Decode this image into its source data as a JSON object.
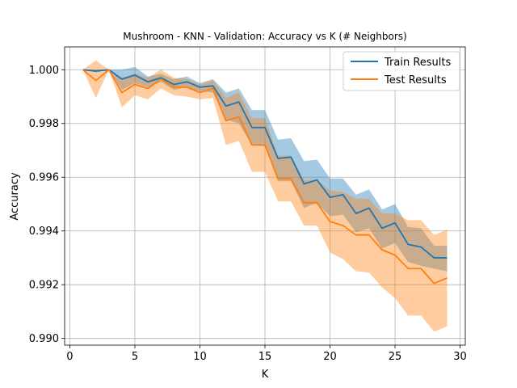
{
  "chart_data": {
    "type": "line",
    "title": "Mushroom - KNN - Validation: Accuracy vs K (# Neighbors)",
    "xlabel": "K",
    "ylabel": "Accuracy",
    "xlim": [
      -0.4,
      30.4
    ],
    "ylim": [
      0.98975,
      1.00085
    ],
    "xticks": [
      0,
      5,
      10,
      15,
      20,
      25,
      30
    ],
    "xtick_labels": [
      "0",
      "5",
      "10",
      "15",
      "20",
      "25",
      "30"
    ],
    "yticks": [
      0.99,
      0.992,
      0.994,
      0.996,
      0.998,
      1.0
    ],
    "ytick_labels": [
      "0.990",
      "0.992",
      "0.994",
      "0.996",
      "0.998",
      "1.000"
    ],
    "grid": true,
    "legend_position": "upper right",
    "x": [
      1,
      2,
      3,
      4,
      5,
      6,
      7,
      8,
      9,
      10,
      11,
      12,
      13,
      14,
      15,
      16,
      17,
      18,
      19,
      20,
      21,
      22,
      23,
      24,
      25,
      26,
      27,
      28,
      29
    ],
    "series": [
      {
        "name": "Train Results",
        "color": "#1f77b4",
        "band_color": "#1f77b4",
        "values": [
          1.0,
          0.99995,
          1.0,
          0.99965,
          0.9998,
          0.99955,
          0.9997,
          0.99945,
          0.99955,
          0.99935,
          0.9994,
          0.99865,
          0.9988,
          0.99785,
          0.99785,
          0.9967,
          0.99675,
          0.99575,
          0.9959,
          0.99525,
          0.99535,
          0.99465,
          0.99485,
          0.9941,
          0.9943,
          0.9935,
          0.9934,
          0.993,
          0.993
        ],
        "lower": [
          1.0,
          0.9999,
          1.0,
          0.99925,
          0.9995,
          0.99935,
          0.99955,
          0.99925,
          0.99935,
          0.9992,
          0.99915,
          0.99815,
          0.998,
          0.9972,
          0.99715,
          0.99585,
          0.99585,
          0.99485,
          0.99505,
          0.99455,
          0.9946,
          0.99395,
          0.9941,
          0.99335,
          0.99355,
          0.99285,
          0.9927,
          0.9926,
          0.9925
        ],
        "upper": [
          1.0,
          1.0,
          1.0,
          1.0,
          1.0001,
          0.99975,
          0.99985,
          0.99965,
          0.99975,
          0.9995,
          0.99965,
          0.99915,
          0.9993,
          0.9985,
          0.9985,
          0.9974,
          0.99745,
          0.9966,
          0.99665,
          0.99595,
          0.99595,
          0.99535,
          0.99555,
          0.9948,
          0.995,
          0.99415,
          0.9941,
          0.99345,
          0.99345
        ]
      },
      {
        "name": "Test Results",
        "color": "#ff7f0e",
        "band_color": "#ff7f0e",
        "values": [
          1.0,
          0.9996,
          1.0,
          0.99915,
          0.99945,
          0.9993,
          0.99965,
          0.99935,
          0.99935,
          0.99915,
          0.9993,
          0.9981,
          0.99825,
          0.9972,
          0.9972,
          0.99595,
          0.99595,
          0.99505,
          0.99505,
          0.99435,
          0.9942,
          0.99385,
          0.99385,
          0.9933,
          0.9931,
          0.9926,
          0.9926,
          0.99205,
          0.99225
        ],
        "lower": [
          1.0,
          0.99895,
          1.0,
          0.9986,
          0.99905,
          0.9989,
          0.9993,
          0.99905,
          0.999,
          0.9989,
          0.99895,
          0.9972,
          0.99735,
          0.9962,
          0.9962,
          0.9951,
          0.9951,
          0.9942,
          0.9942,
          0.9932,
          0.99295,
          0.9925,
          0.99245,
          0.9919,
          0.9915,
          0.99085,
          0.99085,
          0.99025,
          0.99045
        ],
        "upper": [
          1.0,
          1.00035,
          1.0,
          0.9997,
          0.99985,
          0.9997,
          1.0,
          0.9997,
          0.99965,
          0.99945,
          0.9996,
          0.99895,
          0.99915,
          0.9982,
          0.9982,
          0.9968,
          0.9968,
          0.9959,
          0.9959,
          0.9955,
          0.99545,
          0.9952,
          0.9952,
          0.99465,
          0.99465,
          0.9944,
          0.9944,
          0.99385,
          0.99405
        ]
      }
    ]
  }
}
